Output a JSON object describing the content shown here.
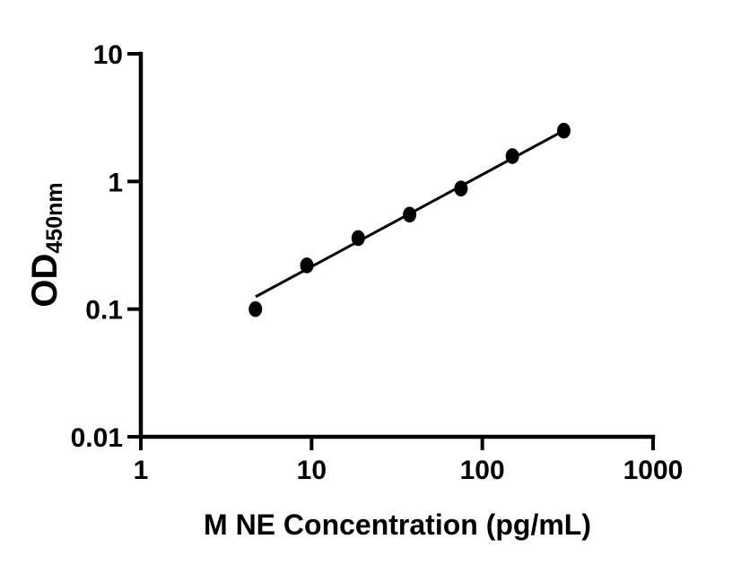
{
  "figure": {
    "background_color": "#ffffff",
    "ink_color": "#000000"
  },
  "chart_data": {
    "type": "scatter",
    "title": "",
    "xlabel": "M NE Concentration (pg/mL)",
    "ylabel_main": "OD",
    "ylabel_sub": "450nm",
    "x_scale": "log",
    "y_scale": "log",
    "xlim": [
      1,
      1000
    ],
    "ylim": [
      0.01,
      10
    ],
    "x_tick_values": [
      1,
      10,
      100,
      1000
    ],
    "x_tick_labels": [
      "1",
      "10",
      "100",
      "1000"
    ],
    "y_tick_values": [
      0.01,
      0.1,
      1,
      10
    ],
    "y_tick_labels": [
      "0.01",
      "0.1",
      "1",
      "10"
    ],
    "grid": "off",
    "legend": "none",
    "marker_style": "filled-circle",
    "marker_color": "#000000",
    "line_color": "#000000",
    "x": [
      4.69,
      9.38,
      18.75,
      37.5,
      75,
      150,
      300
    ],
    "y": [
      0.1,
      0.22,
      0.36,
      0.55,
      0.88,
      1.58,
      2.5
    ],
    "trendline": {
      "x1": 4.7,
      "y1": 0.125,
      "x2": 300,
      "y2": 2.5
    }
  }
}
